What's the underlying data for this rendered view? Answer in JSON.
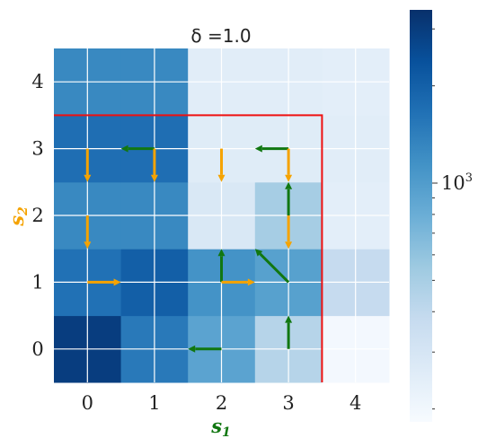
{
  "chart_data": {
    "type": "heatmap",
    "title": "δ =1.0",
    "xlabel": "s",
    "xlabel_sub": "1",
    "ylabel": "s",
    "ylabel_sub": "2",
    "x_ticks": [
      "0",
      "1",
      "2",
      "3",
      "4"
    ],
    "y_ticks": [
      "0",
      "1",
      "2",
      "3",
      "4"
    ],
    "colormap": "Blues",
    "colorbar_scale": "log",
    "colorbar_label_base": "10",
    "colorbar_label_exp": "3",
    "cells": [
      [
        0.95,
        0.95,
        0.72,
        0.72,
        0.55,
        0.55,
        0.3,
        0.3,
        0.02,
        0.02
      ],
      [
        0.95,
        0.95,
        0.72,
        0.72,
        0.55,
        0.55,
        0.3,
        0.3,
        0.02,
        0.02
      ],
      [
        0.75,
        0.75,
        0.82,
        0.82,
        0.62,
        0.62,
        0.56,
        0.56,
        0.25,
        0.25
      ],
      [
        0.75,
        0.75,
        0.82,
        0.82,
        0.62,
        0.62,
        0.56,
        0.56,
        0.25,
        0.25
      ],
      [
        0.66,
        0.66,
        0.66,
        0.66,
        0.15,
        0.15,
        0.35,
        0.35,
        0.1,
        0.1
      ],
      [
        0.66,
        0.66,
        0.66,
        0.66,
        0.15,
        0.15,
        0.35,
        0.35,
        0.1,
        0.1
      ],
      [
        0.76,
        0.76,
        0.76,
        0.76,
        0.12,
        0.12,
        0.12,
        0.12,
        0.11,
        0.11
      ],
      [
        0.76,
        0.76,
        0.76,
        0.76,
        0.12,
        0.12,
        0.12,
        0.12,
        0.11,
        0.11
      ],
      [
        0.66,
        0.66,
        0.66,
        0.66,
        0.11,
        0.11,
        0.11,
        0.11,
        0.1,
        0.1
      ],
      [
        0.66,
        0.66,
        0.66,
        0.66,
        0.11,
        0.11,
        0.11,
        0.11,
        0.1,
        0.1
      ]
    ],
    "boundary": {
      "x_max": 3.5,
      "y_max": 3.5,
      "color": "#ee1111"
    },
    "arrows": [
      {
        "from": [
          0,
          3
        ],
        "to": [
          0,
          2.5
        ],
        "color": "#f5a300"
      },
      {
        "from": [
          0,
          2
        ],
        "to": [
          0,
          1.5
        ],
        "color": "#f5a300"
      },
      {
        "from": [
          0,
          1
        ],
        "to": [
          0.5,
          1
        ],
        "color": "#f5a300"
      },
      {
        "from": [
          1,
          3
        ],
        "to": [
          0.5,
          3
        ],
        "color": "#117711"
      },
      {
        "from": [
          1,
          3
        ],
        "to": [
          1,
          2.5
        ],
        "color": "#f5a300"
      },
      {
        "from": [
          2,
          3
        ],
        "to": [
          2,
          2.5
        ],
        "color": "#f5a300"
      },
      {
        "from": [
          3,
          3
        ],
        "to": [
          2.5,
          3
        ],
        "color": "#117711"
      },
      {
        "from": [
          3,
          3
        ],
        "to": [
          3,
          2.5
        ],
        "color": "#f5a300"
      },
      {
        "from": [
          3,
          2
        ],
        "to": [
          3,
          2.5
        ],
        "color": "#117711"
      },
      {
        "from": [
          3,
          2
        ],
        "to": [
          3,
          1.5
        ],
        "color": "#f5a300"
      },
      {
        "from": [
          2,
          1
        ],
        "to": [
          2,
          1.5
        ],
        "color": "#117711"
      },
      {
        "from": [
          2,
          1
        ],
        "to": [
          2.5,
          1
        ],
        "color": "#f5a300"
      },
      {
        "from": [
          3,
          1
        ],
        "to": [
          2.5,
          1.5
        ],
        "color": "#117711"
      },
      {
        "from": [
          3,
          0
        ],
        "to": [
          3,
          0.5
        ],
        "color": "#117711"
      },
      {
        "from": [
          2,
          0
        ],
        "to": [
          1.5,
          0
        ],
        "color": "#117711"
      }
    ]
  }
}
